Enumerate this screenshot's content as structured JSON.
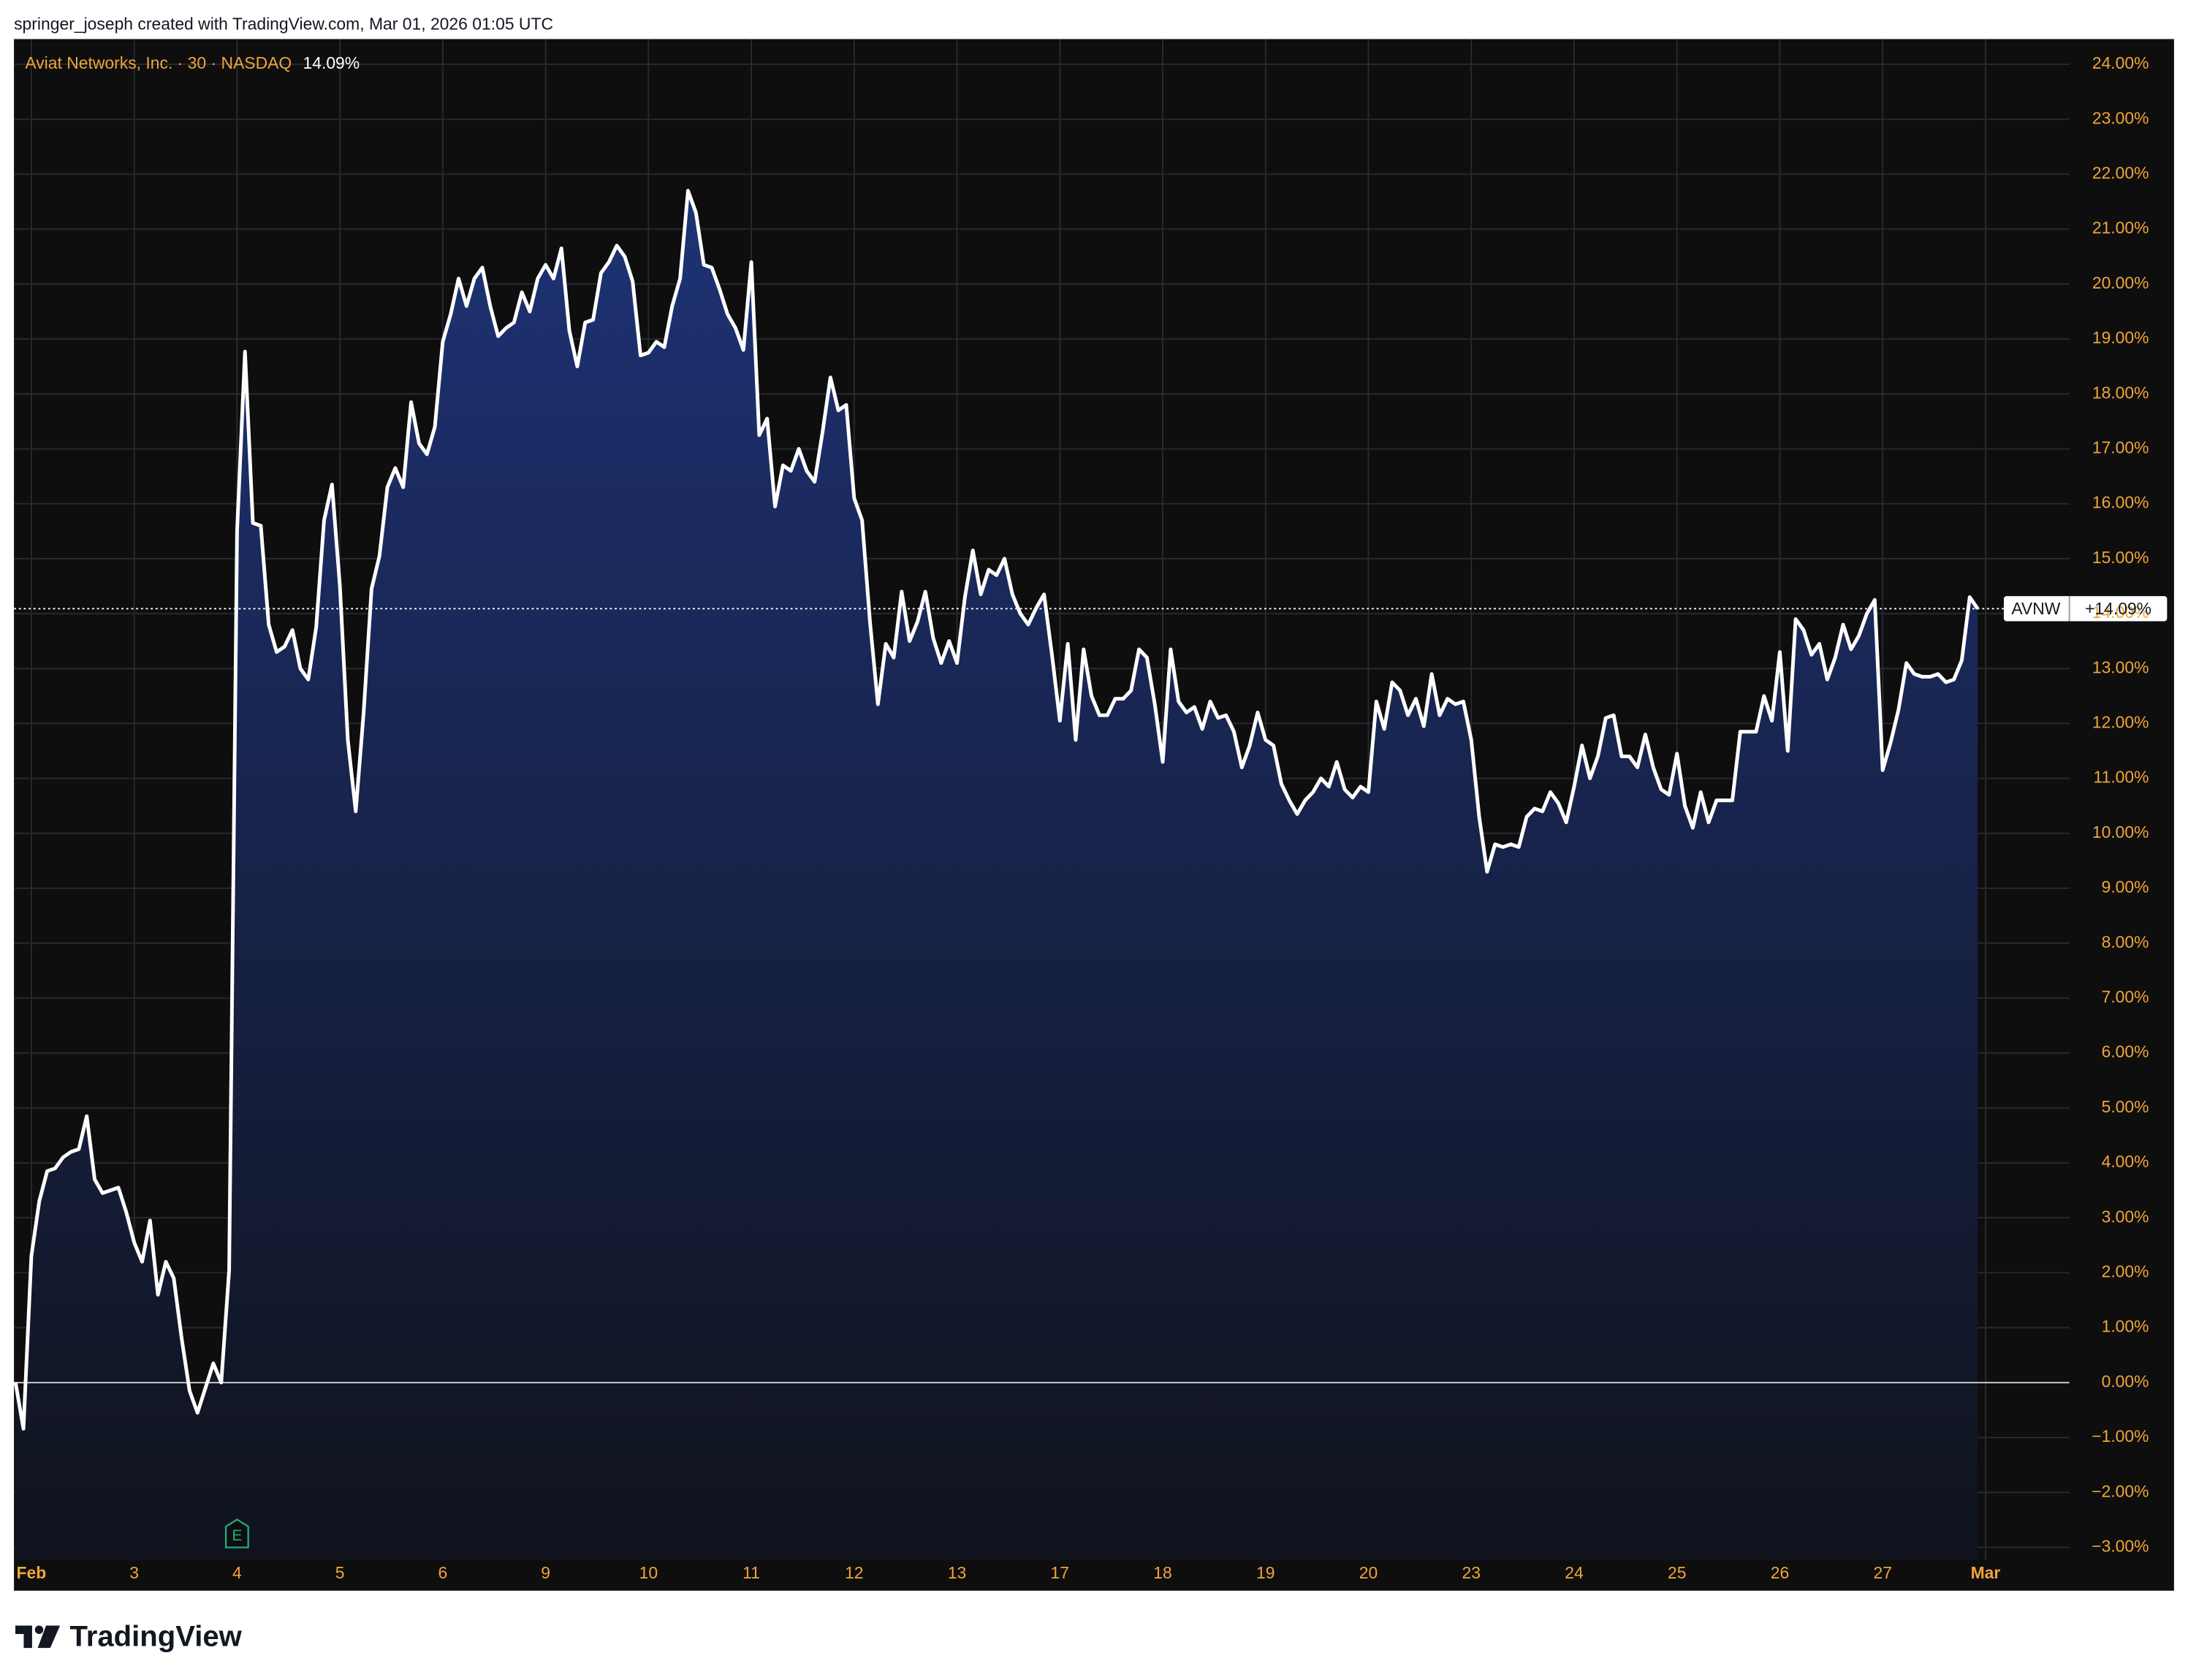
{
  "header": {
    "attribution": "springer_joseph created with TradingView.com, Mar 01, 2026 01:05 UTC"
  },
  "chart_data": {
    "type": "line",
    "title": "Aviat Networks, Inc. · 30 · NASDAQ",
    "legend_value": "14.09%",
    "price_tag_value": "+14.09%",
    "series": [
      {
        "name": "AVNW",
        "color": "#ffffff",
        "values": [
          0,
          -0.84,
          2.3,
          3.3,
          3.85,
          3.9,
          4.1,
          4.2,
          4.25,
          4.85,
          3.7,
          3.45,
          3.5,
          3.55,
          3.1,
          2.55,
          2.2,
          2.95,
          1.6,
          2.2,
          1.9,
          0.8,
          -0.15,
          -0.55,
          -0.1,
          0.35,
          0,
          2.05,
          15.5,
          18.77,
          15.65,
          15.6,
          13.8,
          13.3,
          13.4,
          13.7,
          13.0,
          12.8,
          13.75,
          15.7,
          16.35,
          14.5,
          11.7,
          10.4,
          12.2,
          14.45,
          15.05,
          16.3,
          16.65,
          16.3,
          17.85,
          17.1,
          16.9,
          17.4,
          18.95,
          19.45,
          20.1,
          19.6,
          20.1,
          20.3,
          19.6,
          19.05,
          19.2,
          19.3,
          19.85,
          19.5,
          20.1,
          20.35,
          20.1,
          20.65,
          19.15,
          18.5,
          19.3,
          19.35,
          20.2,
          20.4,
          20.7,
          20.5,
          20.05,
          18.7,
          18.75,
          18.95,
          18.85,
          19.6,
          20.1,
          21.7,
          21.3,
          20.35,
          20.3,
          19.9,
          19.45,
          19.2,
          18.8,
          20.4,
          17.25,
          17.55,
          15.95,
          16.7,
          16.6,
          17.0,
          16.6,
          16.4,
          17.3,
          18.3,
          17.7,
          17.8,
          16.1,
          15.7,
          13.85,
          12.35,
          13.45,
          13.2,
          14.4,
          13.5,
          13.85,
          14.4,
          13.55,
          13.1,
          13.5,
          13.1,
          14.3,
          15.15,
          14.35,
          14.8,
          14.7,
          15.0,
          14.35,
          14.0,
          13.8,
          14.1,
          14.35,
          13.25,
          12.05,
          13.45,
          11.7,
          13.35,
          12.5,
          12.15,
          12.15,
          12.45,
          12.45,
          12.6,
          13.35,
          13.2,
          12.35,
          11.3,
          13.35,
          12.4,
          12.2,
          12.3,
          11.9,
          12.4,
          12.1,
          12.15,
          11.85,
          11.2,
          11.6,
          12.2,
          11.7,
          11.6,
          10.9,
          10.6,
          10.35,
          10.6,
          10.75,
          11.0,
          10.85,
          11.3,
          10.8,
          10.65,
          10.85,
          10.75,
          12.4,
          11.9,
          12.75,
          12.6,
          12.15,
          12.45,
          11.95,
          12.9,
          12.15,
          12.45,
          12.35,
          12.4,
          11.7,
          10.3,
          9.3,
          9.8,
          9.75,
          9.8,
          9.75,
          10.3,
          10.45,
          10.4,
          10.75,
          10.55,
          10.2,
          10.85,
          11.6,
          11.0,
          11.4,
          12.1,
          12.15,
          11.4,
          11.4,
          11.2,
          11.8,
          11.2,
          10.8,
          10.7,
          11.45,
          10.5,
          10.1,
          10.75,
          10.2,
          10.6,
          10.6,
          10.6,
          11.85,
          11.85,
          11.85,
          12.5,
          12.05,
          13.3,
          11.5,
          13.9,
          13.7,
          13.25,
          13.45,
          12.8,
          13.2,
          13.8,
          13.35,
          13.6,
          14.0,
          14.25,
          11.15,
          11.65,
          12.25,
          13.1,
          12.9,
          12.85,
          12.85,
          12.9,
          12.75,
          12.8,
          13.15,
          14.3,
          14.09
        ]
      }
    ],
    "xlim": [
      -0.2,
      259.6
    ],
    "xticks": [
      {
        "value": 2,
        "label": "Feb"
      },
      {
        "value": 15,
        "label": "3"
      },
      {
        "value": 28,
        "label": "4"
      },
      {
        "value": 41,
        "label": "5"
      },
      {
        "value": 54,
        "label": "6"
      },
      {
        "value": 67,
        "label": "9"
      },
      {
        "value": 80,
        "label": "10"
      },
      {
        "value": 93,
        "label": "11"
      },
      {
        "value": 106,
        "label": "12"
      },
      {
        "value": 119,
        "label": "13"
      },
      {
        "value": 132,
        "label": "17"
      },
      {
        "value": 145,
        "label": "18"
      },
      {
        "value": 158,
        "label": "19"
      },
      {
        "value": 171,
        "label": "20"
      },
      {
        "value": 184,
        "label": "23"
      },
      {
        "value": 197,
        "label": "24"
      },
      {
        "value": 210,
        "label": "25"
      },
      {
        "value": 223,
        "label": "26"
      },
      {
        "value": 236,
        "label": "27"
      },
      {
        "value": 249,
        "label": "Mar"
      }
    ],
    "ylim": [
      -3.23,
      24.46
    ],
    "yticks": [
      {
        "value": -3,
        "label": "−3.00%"
      },
      {
        "value": -2,
        "label": "−2.00%"
      },
      {
        "value": -1,
        "label": "−1.00%"
      },
      {
        "value": 0,
        "label": "0.00%"
      },
      {
        "value": 1,
        "label": "1.00%"
      },
      {
        "value": 2,
        "label": "2.00%"
      },
      {
        "value": 3,
        "label": "3.00%"
      },
      {
        "value": 4,
        "label": "4.00%"
      },
      {
        "value": 5,
        "label": "5.00%"
      },
      {
        "value": 6,
        "label": "6.00%"
      },
      {
        "value": 7,
        "label": "7.00%"
      },
      {
        "value": 8,
        "label": "8.00%"
      },
      {
        "value": 9,
        "label": "9.00%"
      },
      {
        "value": 10,
        "label": "10.00%"
      },
      {
        "value": 11,
        "label": "11.00%"
      },
      {
        "value": 12,
        "label": "12.00%"
      },
      {
        "value": 13,
        "label": "13.00%"
      },
      {
        "value": 14,
        "label": "14.00%"
      },
      {
        "value": 15,
        "label": "15.00%"
      },
      {
        "value": 16,
        "label": "16.00%"
      },
      {
        "value": 17,
        "label": "17.00%"
      },
      {
        "value": 18,
        "label": "18.00%"
      },
      {
        "value": 19,
        "label": "19.00%"
      },
      {
        "value": 20,
        "label": "20.00%"
      },
      {
        "value": 21,
        "label": "21.00%"
      },
      {
        "value": 22,
        "label": "22.00%"
      },
      {
        "value": 23,
        "label": "23.00%"
      },
      {
        "value": 24,
        "label": "24.00%"
      }
    ],
    "grid": true,
    "events": [
      {
        "x": 28,
        "label": "E"
      }
    ]
  },
  "footer": {
    "logo": "TradingView"
  }
}
